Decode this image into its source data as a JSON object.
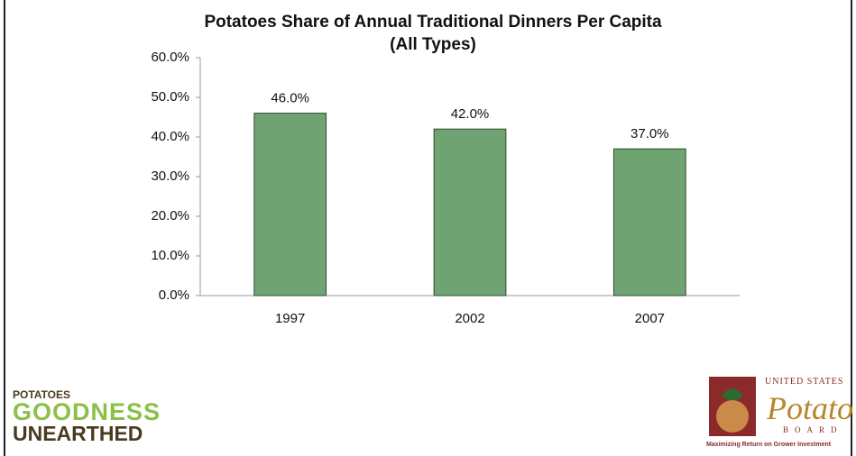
{
  "chart_data": {
    "type": "bar",
    "title": "Potatoes Share of Annual Traditional Dinners Per Capita (All Types)",
    "categories": [
      "1997",
      "2002",
      "2007"
    ],
    "values": [
      46,
      42,
      37
    ],
    "value_labels": [
      "46.0%",
      "42.0%",
      "37.0%"
    ],
    "color": "#6fa372",
    "ylim": [
      0,
      60
    ],
    "yticks": [
      {
        "value": 0,
        "label": "0.0%"
      },
      {
        "value": 10,
        "label": "10.0%"
      },
      {
        "value": 20,
        "label": "20.0%"
      },
      {
        "value": 30,
        "label": "30.0%"
      },
      {
        "value": 40,
        "label": "40.0%"
      },
      {
        "value": 50,
        "label": "50.0%"
      },
      {
        "value": 60,
        "label": "60.0%"
      }
    ],
    "grid": false
  },
  "logos": {
    "left": [
      "POTATOES",
      "GOODNESS",
      "UNEARTHED"
    ],
    "right": {
      "top": "UNITED STATES",
      "name": "Potato",
      "board": "BOARD",
      "tagline": "Maximizing Return on Grower Investment"
    }
  }
}
